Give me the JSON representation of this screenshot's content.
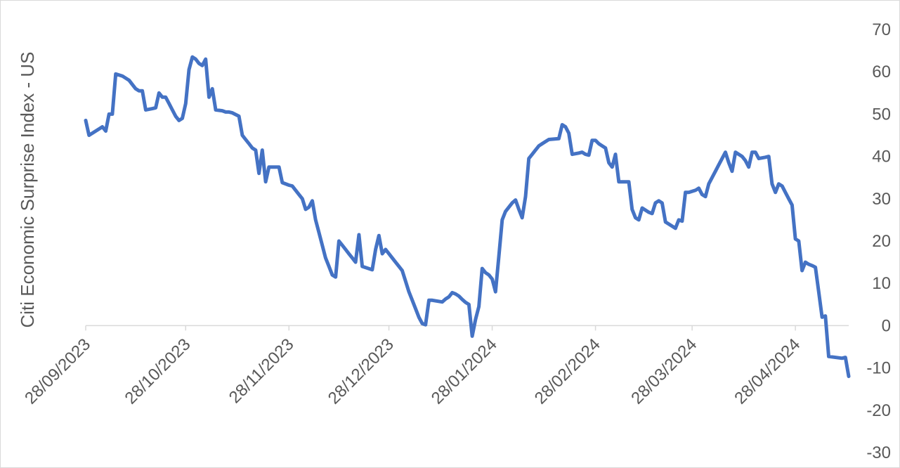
{
  "chart_data": {
    "type": "line",
    "title": "",
    "ylabel": "Citi Economic Surprise Index - US",
    "xlabel": "",
    "ylim": [
      -30,
      70
    ],
    "yticks": [
      70,
      60,
      50,
      40,
      30,
      20,
      10,
      0,
      -10,
      -20,
      -30
    ],
    "y_axis_side": "right",
    "grid": false,
    "legend": "none",
    "xlim": [
      "2023-09-28",
      "2024-05-14"
    ],
    "xtick_labels": [
      "28/09/2023",
      "28/10/2023",
      "28/11/2023",
      "28/12/2023",
      "28/01/2024",
      "28/02/2024",
      "28/03/2024",
      "28/04/2024"
    ],
    "xtick_dates": [
      "2023-09-28",
      "2023-10-28",
      "2023-11-28",
      "2023-12-28",
      "2024-01-28",
      "2024-02-28",
      "2024-03-28",
      "2024-04-28"
    ],
    "series": [
      {
        "color": "#4472c4",
        "points": [
          [
            "2023-09-28",
            48.5
          ],
          [
            "2023-09-29",
            45
          ],
          [
            "2023-10-01",
            46
          ],
          [
            "2023-10-02",
            46.5
          ],
          [
            "2023-10-03",
            47
          ],
          [
            "2023-10-04",
            46
          ],
          [
            "2023-10-05",
            50
          ],
          [
            "2023-10-06",
            50
          ],
          [
            "2023-10-07",
            59.5
          ],
          [
            "2023-10-09",
            59
          ],
          [
            "2023-10-10",
            58.5
          ],
          [
            "2023-10-11",
            58
          ],
          [
            "2023-10-12",
            57
          ],
          [
            "2023-10-13",
            56
          ],
          [
            "2023-10-14",
            55.5
          ],
          [
            "2023-10-15",
            55.5
          ],
          [
            "2023-10-16",
            51
          ],
          [
            "2023-10-18",
            51.3
          ],
          [
            "2023-10-19",
            51.5
          ],
          [
            "2023-10-20",
            55
          ],
          [
            "2023-10-21",
            54
          ],
          [
            "2023-10-22",
            54
          ],
          [
            "2023-10-23",
            52.5
          ],
          [
            "2023-10-24",
            51
          ],
          [
            "2023-10-25",
            49.5
          ],
          [
            "2023-10-26",
            48.5
          ],
          [
            "2023-10-27",
            49
          ],
          [
            "2023-10-28",
            52.5
          ],
          [
            "2023-10-29",
            60.5
          ],
          [
            "2023-10-30",
            63.5
          ],
          [
            "2023-10-31",
            63
          ],
          [
            "2023-11-01",
            62
          ],
          [
            "2023-11-02",
            61.5
          ],
          [
            "2023-11-03",
            63
          ],
          [
            "2023-11-04",
            54
          ],
          [
            "2023-11-05",
            56
          ],
          [
            "2023-11-06",
            51
          ],
          [
            "2023-11-08",
            50.8
          ],
          [
            "2023-11-09",
            50.5
          ],
          [
            "2023-11-10",
            50.5
          ],
          [
            "2023-11-11",
            50.3
          ],
          [
            "2023-11-13",
            49.5
          ],
          [
            "2023-11-14",
            45
          ],
          [
            "2023-11-15",
            44
          ],
          [
            "2023-11-16",
            43
          ],
          [
            "2023-11-17",
            42
          ],
          [
            "2023-11-18",
            41.5
          ],
          [
            "2023-11-19",
            36
          ],
          [
            "2023-11-20",
            41.5
          ],
          [
            "2023-11-21",
            34
          ],
          [
            "2023-11-22",
            37.5
          ],
          [
            "2023-11-24",
            37.5
          ],
          [
            "2023-11-25",
            37.5
          ],
          [
            "2023-11-26",
            33.8
          ],
          [
            "2023-11-28",
            33.2
          ],
          [
            "2023-11-29",
            33
          ],
          [
            "2023-11-30",
            32
          ],
          [
            "2023-12-01",
            31
          ],
          [
            "2023-12-02",
            30
          ],
          [
            "2023-12-03",
            27.5
          ],
          [
            "2023-12-04",
            28
          ],
          [
            "2023-12-05",
            29.5
          ],
          [
            "2023-12-06",
            25
          ],
          [
            "2023-12-07",
            22
          ],
          [
            "2023-12-08",
            19
          ],
          [
            "2023-12-09",
            16
          ],
          [
            "2023-12-10",
            14
          ],
          [
            "2023-12-11",
            12
          ],
          [
            "2023-12-12",
            11.5
          ],
          [
            "2023-12-13",
            20
          ],
          [
            "2023-12-14",
            19
          ],
          [
            "2023-12-15",
            18
          ],
          [
            "2023-12-16",
            17
          ],
          [
            "2023-12-17",
            16
          ],
          [
            "2023-12-18",
            15
          ],
          [
            "2023-12-19",
            21.5
          ],
          [
            "2023-12-20",
            14
          ],
          [
            "2023-12-23",
            13.2
          ],
          [
            "2023-12-24",
            18
          ],
          [
            "2023-12-25",
            21.3
          ],
          [
            "2023-12-26",
            17
          ],
          [
            "2023-12-27",
            18
          ],
          [
            "2023-12-28",
            17
          ],
          [
            "2023-12-29",
            16
          ],
          [
            "2023-12-30",
            15
          ],
          [
            "2023-12-31",
            14
          ],
          [
            "2024-01-01",
            13
          ],
          [
            "2024-01-02",
            10.5
          ],
          [
            "2024-01-03",
            8
          ],
          [
            "2024-01-04",
            6
          ],
          [
            "2024-01-05",
            4
          ],
          [
            "2024-01-06",
            2
          ],
          [
            "2024-01-07",
            0.5
          ],
          [
            "2024-01-08",
            0.2
          ],
          [
            "2024-01-09",
            6
          ],
          [
            "2024-01-10",
            6
          ],
          [
            "2024-01-13",
            5.6
          ],
          [
            "2024-01-14",
            6.3
          ],
          [
            "2024-01-15",
            6.8
          ],
          [
            "2024-01-16",
            7.8
          ],
          [
            "2024-01-17",
            7.5
          ],
          [
            "2024-01-18",
            7
          ],
          [
            "2024-01-19",
            6.2
          ],
          [
            "2024-01-20",
            5.5
          ],
          [
            "2024-01-21",
            5
          ],
          [
            "2024-01-22",
            -2.5
          ],
          [
            "2024-01-23",
            1.5
          ],
          [
            "2024-01-24",
            4.5
          ],
          [
            "2024-01-25",
            13.5
          ],
          [
            "2024-01-26",
            12.5
          ],
          [
            "2024-01-27",
            12
          ],
          [
            "2024-01-28",
            11
          ],
          [
            "2024-01-29",
            8
          ],
          [
            "2024-01-30",
            16.5
          ],
          [
            "2024-01-31",
            25
          ],
          [
            "2024-02-01",
            27
          ],
          [
            "2024-02-02",
            28
          ],
          [
            "2024-02-03",
            29
          ],
          [
            "2024-02-04",
            29.7
          ],
          [
            "2024-02-05",
            27.5
          ],
          [
            "2024-02-06",
            25.5
          ],
          [
            "2024-02-07",
            30.5
          ],
          [
            "2024-02-08",
            39.5
          ],
          [
            "2024-02-09",
            40.5
          ],
          [
            "2024-02-10",
            41.5
          ],
          [
            "2024-02-11",
            42.5
          ],
          [
            "2024-02-12",
            43
          ],
          [
            "2024-02-13",
            43.5
          ],
          [
            "2024-02-14",
            44
          ],
          [
            "2024-02-17",
            44.2
          ],
          [
            "2024-02-18",
            47.5
          ],
          [
            "2024-02-19",
            47
          ],
          [
            "2024-02-20",
            45.5
          ],
          [
            "2024-02-21",
            40.5
          ],
          [
            "2024-02-23",
            40.8
          ],
          [
            "2024-02-24",
            41
          ],
          [
            "2024-02-25",
            40.5
          ],
          [
            "2024-02-26",
            40.3
          ],
          [
            "2024-02-27",
            43.8
          ],
          [
            "2024-02-28",
            43.8
          ],
          [
            "2024-02-29",
            43
          ],
          [
            "2024-03-01",
            42.5
          ],
          [
            "2024-03-02",
            42
          ],
          [
            "2024-03-03",
            38.5
          ],
          [
            "2024-03-04",
            37.5
          ],
          [
            "2024-03-05",
            40.5
          ],
          [
            "2024-03-06",
            34
          ],
          [
            "2024-03-08",
            34
          ],
          [
            "2024-03-09",
            34
          ],
          [
            "2024-03-10",
            27.5
          ],
          [
            "2024-03-11",
            25.5
          ],
          [
            "2024-03-12",
            25
          ],
          [
            "2024-03-13",
            27.8
          ],
          [
            "2024-03-15",
            26.8
          ],
          [
            "2024-03-16",
            26.5
          ],
          [
            "2024-03-17",
            29
          ],
          [
            "2024-03-18",
            29.5
          ],
          [
            "2024-03-19",
            29
          ],
          [
            "2024-03-20",
            24.5
          ],
          [
            "2024-03-22",
            23.5
          ],
          [
            "2024-03-23",
            23
          ],
          [
            "2024-03-24",
            25
          ],
          [
            "2024-03-25",
            24.7
          ],
          [
            "2024-03-26",
            31.5
          ],
          [
            "2024-03-27",
            31.5
          ],
          [
            "2024-03-29",
            32
          ],
          [
            "2024-03-30",
            32.5
          ],
          [
            "2024-03-31",
            31
          ],
          [
            "2024-04-01",
            30.5
          ],
          [
            "2024-04-02",
            33.5
          ],
          [
            "2024-04-04",
            36.5
          ],
          [
            "2024-04-05",
            38
          ],
          [
            "2024-04-06",
            39.5
          ],
          [
            "2024-04-07",
            41
          ],
          [
            "2024-04-08",
            38.5
          ],
          [
            "2024-04-09",
            36.5
          ],
          [
            "2024-04-10",
            41
          ],
          [
            "2024-04-12",
            40
          ],
          [
            "2024-04-13",
            39
          ],
          [
            "2024-04-14",
            37.5
          ],
          [
            "2024-04-15",
            41
          ],
          [
            "2024-04-16",
            41
          ],
          [
            "2024-04-17",
            39.5
          ],
          [
            "2024-04-19",
            39.8
          ],
          [
            "2024-04-20",
            40
          ],
          [
            "2024-04-21",
            33.5
          ],
          [
            "2024-04-22",
            31.5
          ],
          [
            "2024-04-23",
            33.5
          ],
          [
            "2024-04-24",
            33
          ],
          [
            "2024-04-25",
            31.5
          ],
          [
            "2024-04-26",
            30
          ],
          [
            "2024-04-27",
            28.5
          ],
          [
            "2024-04-28",
            20.5
          ],
          [
            "2024-04-29",
            20
          ],
          [
            "2024-04-30",
            13
          ],
          [
            "2024-05-01",
            15
          ],
          [
            "2024-05-02",
            14.5
          ],
          [
            "2024-05-03",
            14.2
          ],
          [
            "2024-05-04",
            13.8
          ],
          [
            "2024-05-05",
            8
          ],
          [
            "2024-05-06",
            2
          ],
          [
            "2024-05-07",
            2.3
          ],
          [
            "2024-05-08",
            -7.3
          ],
          [
            "2024-05-11",
            -7.6
          ],
          [
            "2024-05-12",
            -7.7
          ],
          [
            "2024-05-13",
            -7.5
          ],
          [
            "2024-05-14",
            -12
          ]
        ]
      }
    ]
  }
}
